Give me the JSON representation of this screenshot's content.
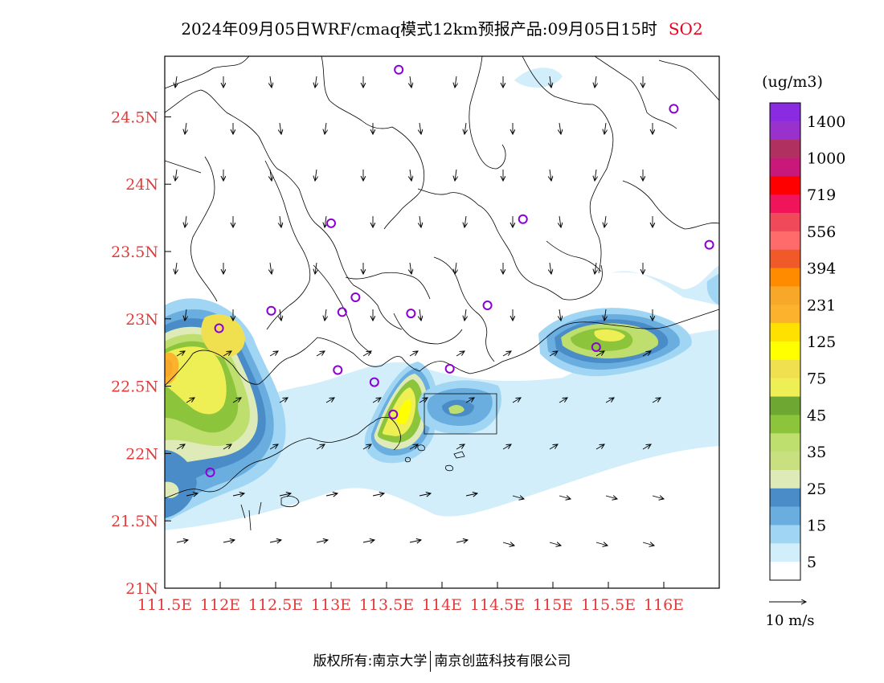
{
  "title": "2024年09月05日WRF/cmaq模式12km预报产品:09月05日15时",
  "pollutant": "SO2",
  "colors": {
    "axis_label": "#e23b3b",
    "pollutant": "#e8001c",
    "station_marker": "#8a00d4",
    "boundary": "#000000"
  },
  "map_data": {
    "type": "heatmap",
    "lon_range": [
      111.5,
      116.5
    ],
    "lat_range": [
      21.0,
      24.95
    ],
    "x_ticks": [
      "111.5E",
      "112E",
      "112.5E",
      "113E",
      "113.5E",
      "114E",
      "114.5E",
      "115E",
      "115.5E",
      "116E"
    ],
    "y_ticks": [
      "21N",
      "21.5N",
      "22N",
      "22.5N",
      "23N",
      "23.5N",
      "24N",
      "24.5N"
    ]
  },
  "legend": {
    "unit": "(ug/m3)",
    "labels": [
      "1400",
      "1000",
      "719",
      "556",
      "394",
      "231",
      "125",
      "75",
      "45",
      "35",
      "25",
      "15",
      "5"
    ],
    "colors": [
      "#8a2be2",
      "#9932cc",
      "#b03060",
      "#c8187a",
      "#ff0000",
      "#f0145a",
      "#f04a5a",
      "#ff6a6a",
      "#f05a28",
      "#ff8c00",
      "#f8a828",
      "#fcb22c",
      "#ffe100",
      "#ffff00",
      "#f0e050",
      "#eeee55",
      "#6ea832",
      "#8cc43c",
      "#bede6e",
      "#c8e080",
      "#deebb8",
      "#4a8cc8",
      "#6aaee0",
      "#a0d6f4",
      "#d2eefa",
      "#ffffff"
    ]
  },
  "wind_scale": {
    "label": "10 m/s"
  },
  "stations": [
    {
      "lon": 113.61,
      "lat": 24.85
    },
    {
      "lon": 116.09,
      "lat": 24.56
    },
    {
      "lon": 113.0,
      "lat": 23.71
    },
    {
      "lon": 114.73,
      "lat": 23.74
    },
    {
      "lon": 116.41,
      "lat": 23.55
    },
    {
      "lon": 113.22,
      "lat": 23.16
    },
    {
      "lon": 112.46,
      "lat": 23.06
    },
    {
      "lon": 113.1,
      "lat": 23.05
    },
    {
      "lon": 113.72,
      "lat": 23.04
    },
    {
      "lon": 114.41,
      "lat": 23.1
    },
    {
      "lon": 111.99,
      "lat": 22.93
    },
    {
      "lon": 115.39,
      "lat": 22.79
    },
    {
      "lon": 113.06,
      "lat": 22.62
    },
    {
      "lon": 113.39,
      "lat": 22.53
    },
    {
      "lon": 114.07,
      "lat": 22.63
    },
    {
      "lon": 113.56,
      "lat": 22.29
    },
    {
      "lon": 111.91,
      "lat": 21.86
    }
  ],
  "footer": {
    "left": "版权所有:南京大学",
    "right": "南京创蓝科技有限公司"
  }
}
